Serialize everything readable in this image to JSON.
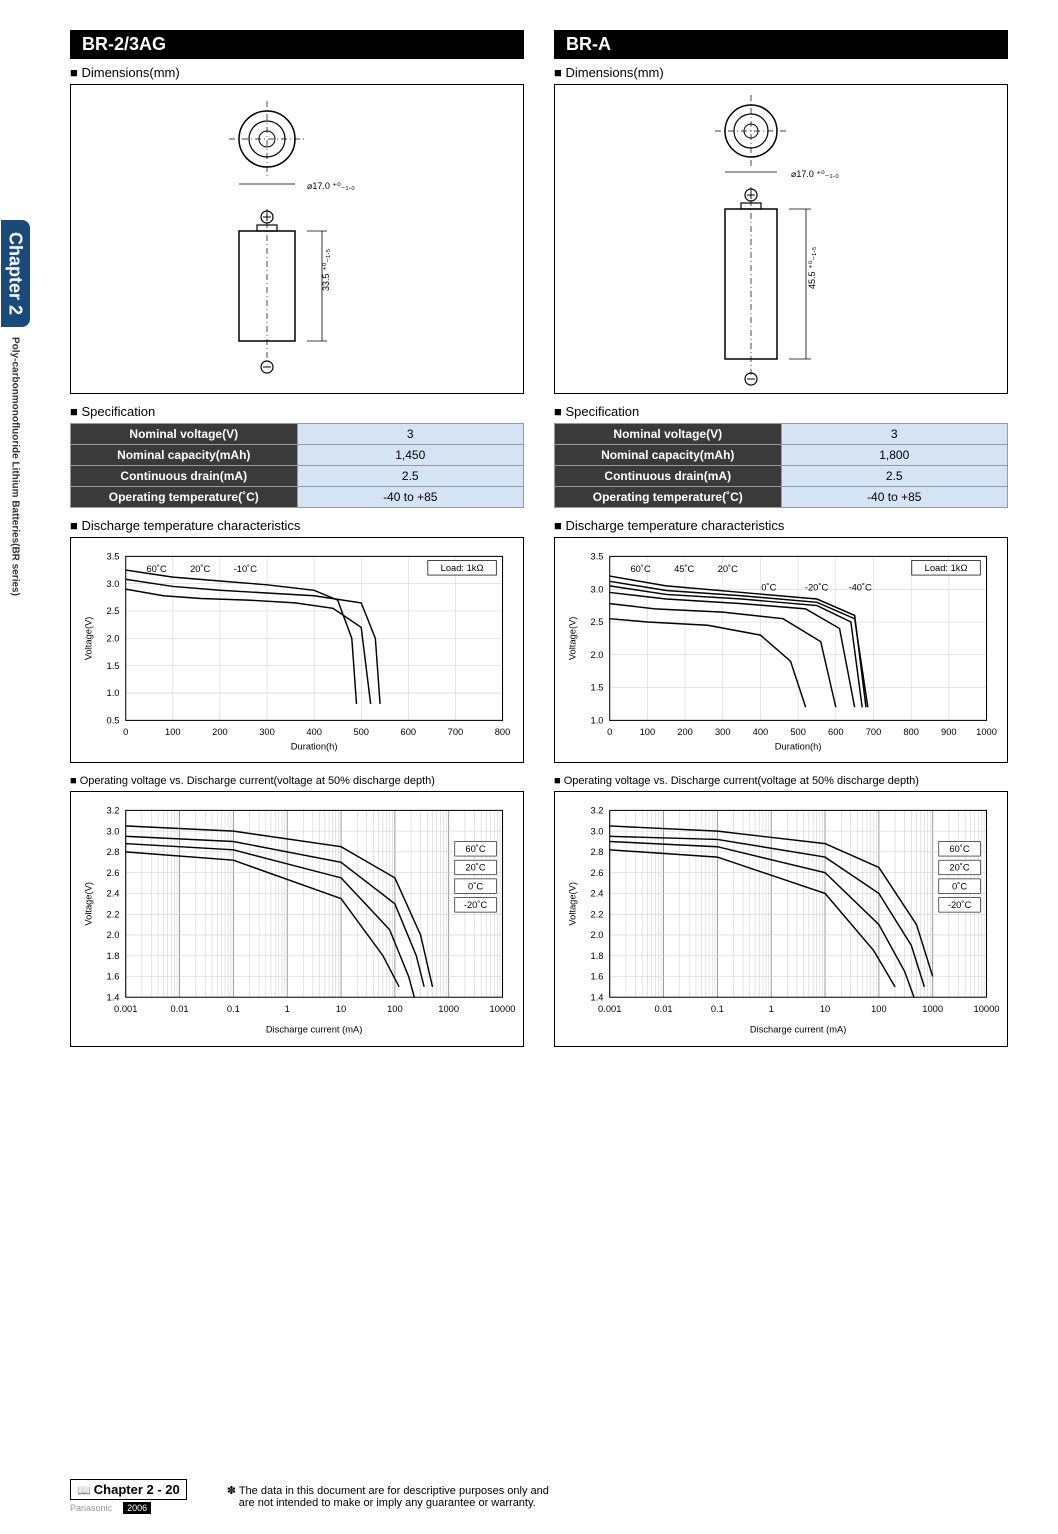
{
  "side": {
    "chapter": "Chapter 2",
    "series_label": "Poly-carbonmonofluoride Lithium Batteries(BR series)"
  },
  "left": {
    "model": "BR-2/3AG",
    "dimensions_label": "Dimensions(mm)",
    "dim": {
      "diameter_label": "⌀17.0 ⁺⁰₋₁.₀",
      "height_label": "33.5 ⁺⁰₋₁.₅",
      "diameter": 17.0,
      "body_height": 33.5
    },
    "spec_label": "Specification",
    "spec": {
      "rows": [
        {
          "k": "Nominal voltage(V)",
          "v": "3"
        },
        {
          "k": "Nominal capacity(mAh)",
          "v": "1,450"
        },
        {
          "k": "Continuous drain(mA)",
          "v": "2.5"
        },
        {
          "k": "Operating temperature(˚C)",
          "v": "-40 to +85"
        }
      ]
    },
    "discharge_label": "Discharge temperature characteristics",
    "discharge": {
      "type": "line",
      "load_label": "Load: 1kΩ",
      "x_label": "Duration(h)",
      "y_label": "Voltage(V)",
      "xlim": [
        0,
        800
      ],
      "ylim": [
        0.5,
        3.5
      ],
      "xticks": [
        0,
        100,
        200,
        300,
        400,
        500,
        600,
        700,
        800
      ],
      "yticks": [
        0.5,
        1.0,
        1.5,
        2.0,
        2.5,
        3.0,
        3.5
      ],
      "series_labels": [
        "60˚C",
        "20˚C",
        "-10˚C"
      ],
      "label_pos": {
        "60C": [
          130,
          3.35
        ],
        "20C": [
          200,
          2.55
        ],
        "neg10C": [
          135,
          2.6
        ]
      },
      "grid_color": "#cccccc",
      "bg": "#ffffff",
      "series": {
        "60C": [
          [
            0,
            3.25
          ],
          [
            100,
            3.12
          ],
          [
            200,
            3.05
          ],
          [
            300,
            2.98
          ],
          [
            400,
            2.88
          ],
          [
            450,
            2.7
          ],
          [
            480,
            2.0
          ],
          [
            490,
            0.8
          ]
        ],
        "20C": [
          [
            0,
            3.08
          ],
          [
            100,
            2.95
          ],
          [
            200,
            2.88
          ],
          [
            300,
            2.83
          ],
          [
            400,
            2.78
          ],
          [
            500,
            2.65
          ],
          [
            530,
            2.0
          ],
          [
            540,
            0.8
          ]
        ],
        "neg10C": [
          [
            0,
            2.9
          ],
          [
            80,
            2.78
          ],
          [
            160,
            2.73
          ],
          [
            260,
            2.7
          ],
          [
            360,
            2.65
          ],
          [
            440,
            2.55
          ],
          [
            500,
            2.2
          ],
          [
            520,
            0.8
          ]
        ]
      }
    },
    "opv_label": "Operating voltage vs. Discharge current(voltage at 50% discharge depth)",
    "opv": {
      "type": "line-logx",
      "x_label": "Discharge current (mA)",
      "y_label": "Voltage(V)",
      "xlim": [
        0.001,
        10000
      ],
      "ylim": [
        1.4,
        3.2
      ],
      "xticks": [
        "0.001",
        "0.01",
        "0.1",
        "1",
        "10",
        "100",
        "1000",
        "10000"
      ],
      "yticks": [
        1.4,
        1.6,
        1.8,
        2.0,
        2.2,
        2.4,
        2.6,
        2.8,
        3.0,
        3.2
      ],
      "series_labels": [
        "60˚C",
        "20˚C",
        "0˚C",
        "-20˚C"
      ],
      "grid_color": "#cccccc",
      "series": {
        "60C": [
          [
            0.001,
            3.05
          ],
          [
            0.1,
            3.0
          ],
          [
            10,
            2.85
          ],
          [
            100,
            2.55
          ],
          [
            300,
            2.0
          ],
          [
            500,
            1.5
          ]
        ],
        "20C": [
          [
            0.001,
            2.95
          ],
          [
            0.1,
            2.9
          ],
          [
            10,
            2.7
          ],
          [
            100,
            2.3
          ],
          [
            250,
            1.8
          ],
          [
            350,
            1.5
          ]
        ],
        "0C": [
          [
            0.001,
            2.88
          ],
          [
            0.1,
            2.82
          ],
          [
            10,
            2.55
          ],
          [
            80,
            2.05
          ],
          [
            180,
            1.6
          ],
          [
            230,
            1.4
          ]
        ],
        "neg20C": [
          [
            0.001,
            2.8
          ],
          [
            0.1,
            2.72
          ],
          [
            10,
            2.35
          ],
          [
            60,
            1.8
          ],
          [
            120,
            1.5
          ]
        ]
      }
    }
  },
  "right": {
    "model": "BR-A",
    "dimensions_label": "Dimensions(mm)",
    "dim": {
      "diameter_label": "⌀17.0 ⁺⁰₋₁.₀",
      "height_label": "45.5 ⁺⁰₋₁.₅",
      "diameter": 17.0,
      "body_height": 45.5
    },
    "spec_label": "Specification",
    "spec": {
      "rows": [
        {
          "k": "Nominal voltage(V)",
          "v": "3"
        },
        {
          "k": "Nominal capacity(mAh)",
          "v": "1,800"
        },
        {
          "k": "Continuous drain(mA)",
          "v": "2.5"
        },
        {
          "k": "Operating temperature(˚C)",
          "v": "-40 to +85"
        }
      ]
    },
    "discharge_label": "Discharge temperature characteristics",
    "discharge": {
      "type": "line",
      "load_label": "Load: 1kΩ",
      "x_label": "Duration(h)",
      "y_label": "Voltage(V)",
      "xlim": [
        0,
        1000
      ],
      "ylim": [
        1.0,
        3.5
      ],
      "xticks": [
        0,
        100,
        200,
        300,
        400,
        500,
        600,
        700,
        800,
        900,
        1000
      ],
      "yticks": [
        1.0,
        1.5,
        2.0,
        2.5,
        3.0,
        3.5
      ],
      "series_labels": [
        "60˚C",
        "45˚C",
        "20˚C",
        "0˚C",
        "-20˚C",
        "-40˚C"
      ],
      "grid_color": "#cccccc",
      "series": {
        "60C": [
          [
            0,
            3.2
          ],
          [
            150,
            3.05
          ],
          [
            350,
            2.95
          ],
          [
            550,
            2.85
          ],
          [
            650,
            2.6
          ],
          [
            680,
            1.2
          ]
        ],
        "45C": [
          [
            0,
            3.12
          ],
          [
            150,
            2.98
          ],
          [
            350,
            2.9
          ],
          [
            550,
            2.8
          ],
          [
            650,
            2.55
          ],
          [
            685,
            1.2
          ]
        ],
        "20C": [
          [
            0,
            3.05
          ],
          [
            150,
            2.92
          ],
          [
            350,
            2.85
          ],
          [
            550,
            2.75
          ],
          [
            640,
            2.5
          ],
          [
            670,
            1.2
          ]
        ],
        "0C": [
          [
            0,
            2.95
          ],
          [
            150,
            2.85
          ],
          [
            350,
            2.78
          ],
          [
            520,
            2.7
          ],
          [
            610,
            2.4
          ],
          [
            650,
            1.2
          ]
        ],
        "neg20C": [
          [
            0,
            2.78
          ],
          [
            120,
            2.7
          ],
          [
            300,
            2.65
          ],
          [
            460,
            2.55
          ],
          [
            560,
            2.2
          ],
          [
            600,
            1.2
          ]
        ],
        "neg40C": [
          [
            0,
            2.55
          ],
          [
            100,
            2.5
          ],
          [
            260,
            2.45
          ],
          [
            400,
            2.3
          ],
          [
            480,
            1.9
          ],
          [
            520,
            1.2
          ]
        ]
      }
    },
    "opv_label": "Operating voltage vs. Discharge current(voltage at 50% discharge depth)",
    "opv": {
      "type": "line-logx",
      "x_label": "Discharge current (mA)",
      "y_label": "Voltage(V)",
      "xlim": [
        0.001,
        10000
      ],
      "ylim": [
        1.4,
        3.2
      ],
      "xticks": [
        "0.001",
        "0.01",
        "0.1",
        "1",
        "10",
        "100",
        "1000",
        "10000"
      ],
      "yticks": [
        1.4,
        1.6,
        1.8,
        2.0,
        2.2,
        2.4,
        2.6,
        2.8,
        3.0,
        3.2
      ],
      "series_labels": [
        "60˚C",
        "20˚C",
        "0˚C",
        "-20˚C"
      ],
      "grid_color": "#cccccc",
      "series": {
        "60C": [
          [
            0.001,
            3.05
          ],
          [
            0.1,
            3.0
          ],
          [
            10,
            2.88
          ],
          [
            100,
            2.65
          ],
          [
            500,
            2.1
          ],
          [
            1000,
            1.6
          ]
        ],
        "20C": [
          [
            0.001,
            2.95
          ],
          [
            0.1,
            2.92
          ],
          [
            10,
            2.75
          ],
          [
            100,
            2.4
          ],
          [
            400,
            1.9
          ],
          [
            700,
            1.5
          ]
        ],
        "0C": [
          [
            0.001,
            2.9
          ],
          [
            0.1,
            2.85
          ],
          [
            10,
            2.6
          ],
          [
            100,
            2.1
          ],
          [
            300,
            1.65
          ],
          [
            450,
            1.4
          ]
        ],
        "neg20C": [
          [
            0.001,
            2.82
          ],
          [
            0.1,
            2.75
          ],
          [
            10,
            2.4
          ],
          [
            80,
            1.85
          ],
          [
            200,
            1.5
          ]
        ]
      }
    }
  },
  "footer": {
    "chapter_label": "Chapter",
    "page": "2 - 20",
    "brand": "Panasonic",
    "year": "2006",
    "note1": "✽ The data in this document are for descriptive purposes only and",
    "note2": "are not intended to make or imply any guarantee or warranty."
  }
}
